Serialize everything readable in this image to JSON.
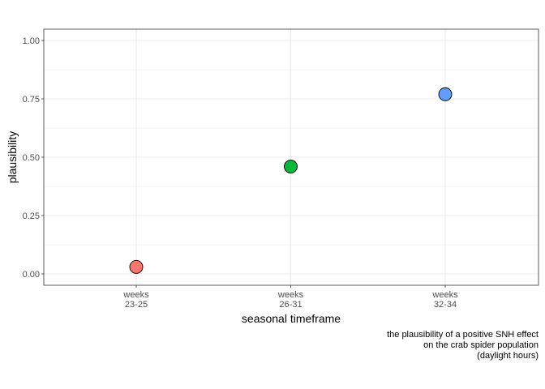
{
  "chart_data": {
    "type": "scatter",
    "title": "",
    "xlabel": "seasonal timeframe",
    "ylabel": "plausibility",
    "caption_lines": [
      "the plausibility of a positive SNH effect",
      "on the crab spider population",
      "(daylight hours)"
    ],
    "categories": [
      [
        "weeks",
        "23-25"
      ],
      [
        "weeks",
        "26-31"
      ],
      [
        "weeks",
        "32-34"
      ]
    ],
    "values": [
      0.03,
      0.46,
      0.77
    ],
    "point_colors": [
      "#F8766D",
      "#00BA38",
      "#619CFF"
    ],
    "ylim": [
      0,
      1
    ],
    "yticks": [
      0.0,
      0.25,
      0.5,
      0.75,
      1.0
    ],
    "ytick_labels": [
      "0.00",
      "0.25",
      "0.50",
      "0.75",
      "1.00"
    ],
    "grid": true,
    "legend": "none"
  }
}
